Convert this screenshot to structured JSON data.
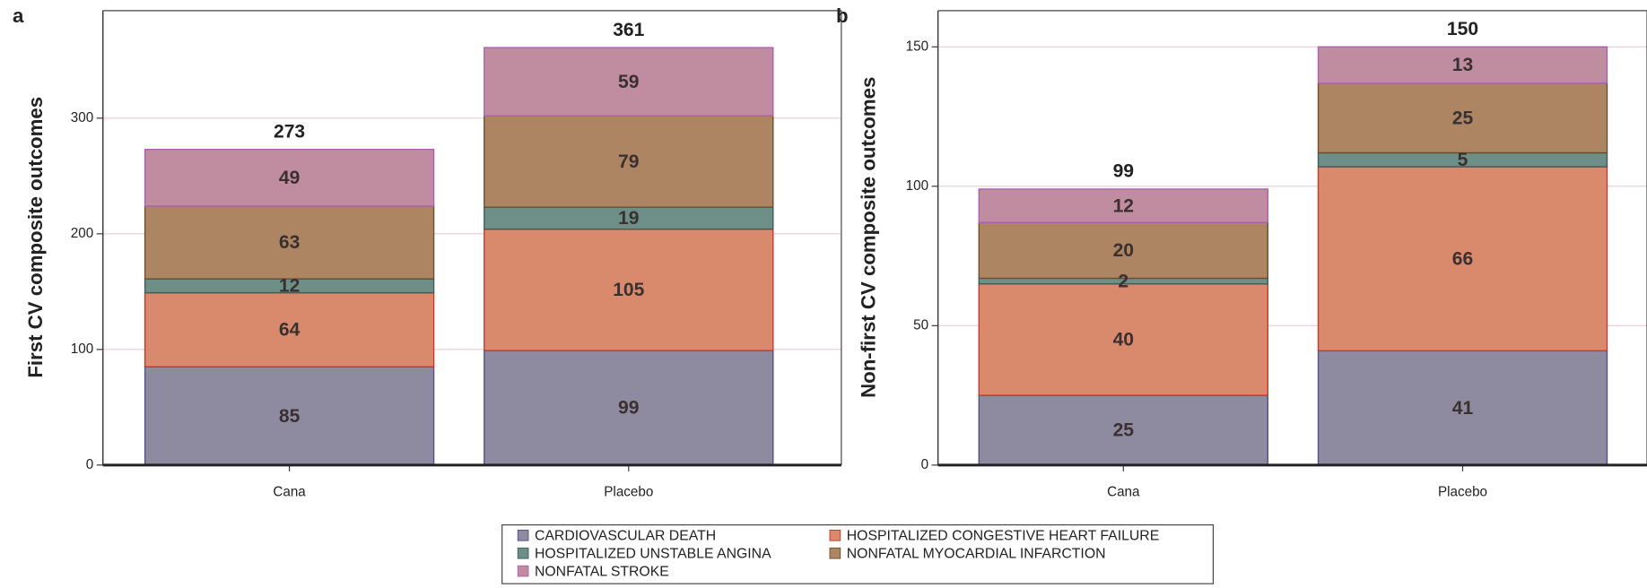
{
  "chart_data": [
    {
      "type": "bar",
      "stacked": true,
      "panel": "a",
      "y_label": "First CV composite outcomes",
      "categories": [
        "Cana",
        "Placebo"
      ],
      "series": [
        {
          "name": "CARDIOVASCULAR DEATH",
          "color": "#8e8aa0",
          "edge": "#5a4f8a",
          "values": [
            85,
            99
          ]
        },
        {
          "name": "HOSPITALIZED CONGESTIVE HEART FAILURE",
          "color": "#d98a6c",
          "edge": "#c83a30",
          "values": [
            64,
            105
          ]
        },
        {
          "name": "HOSPITALIZED UNSTABLE ANGINA",
          "color": "#6e8f88",
          "edge": "#3e5f58",
          "values": [
            12,
            19
          ]
        },
        {
          "name": "NONFATAL MYOCARDIAL INFARCTION",
          "color": "#ad8562",
          "edge": "#6e5030",
          "values": [
            63,
            79
          ]
        },
        {
          "name": "NONFATAL STROKE",
          "color": "#bf8ca0",
          "edge": "#b060b0",
          "values": [
            49,
            59
          ]
        }
      ],
      "totals": [
        273,
        361
      ],
      "ylim": [
        0,
        393
      ],
      "yticks": [
        0,
        100,
        200,
        300
      ],
      "grid": true
    },
    {
      "type": "bar",
      "stacked": true,
      "panel": "b",
      "y_label": "Non-first CV composite outcomes",
      "categories": [
        "Cana",
        "Placebo"
      ],
      "series": [
        {
          "color": "#8e8aa0",
          "edge": "#5a4f8a",
          "values": [
            25,
            41
          ]
        },
        {
          "color": "#d98a6c",
          "edge": "#c83a30",
          "values": [
            40,
            66
          ]
        },
        {
          "color": "#6e8f88",
          "edge": "#3e5f58",
          "values": [
            2,
            5
          ]
        },
        {
          "color": "#ad8562",
          "edge": "#6e5030",
          "values": [
            20,
            25
          ]
        },
        {
          "color": "#bf8ca0",
          "edge": "#b060b0",
          "values": [
            12,
            13
          ]
        }
      ],
      "totals": [
        99,
        150
      ],
      "ylim": [
        0,
        163
      ],
      "yticks": [
        0,
        50,
        100,
        150
      ],
      "grid": true
    }
  ]
}
